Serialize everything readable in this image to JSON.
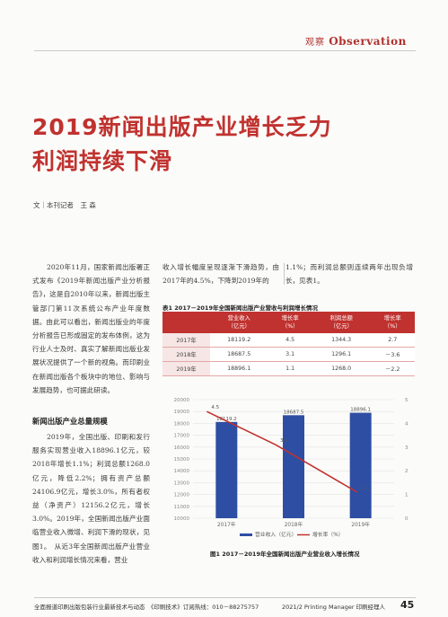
{
  "header": {
    "section_cn": "观察",
    "section_en": "Observation"
  },
  "title": {
    "line1": "2019新闻出版产业增长乏力",
    "line2": "利润持续下滑"
  },
  "byline": "文｜本刊记者　王 森",
  "column1": {
    "paragraph1": "2020年11月，国家新闻出版署正式发布《2019年新闻出版产业分析报告》，这是自2010年以来，新闻出版主管部门第11次系统公布产业年度数据。由此可以看出，新闻出版业的年度分析报告已形成固定的发布体例，这为行业人士及时、真实了解新闻出版业发展状况提供了一个新的视角。而印刷业在新闻出版各个板块中的地位、影响与发展趋势，也可据此研读。",
    "heading": "新闻出版产业总量规模",
    "paragraph2": "2019年，全国出版、印刷和发行服务实现营业收入18896.1亿元，较2018年增长1.1%；利润总额1268.0亿元，降低2.2%；拥有资产总额24106.9亿元，增长3.0%，所有者权益（净资产）12156.2亿元，增长3.0%。2019年，全国新闻出版产业面临营业收入微增、利润下滑的现状，见图1。　从近3年全国新闻出版产业营业收入和利润增长情况来看，营业"
  },
  "column2": {
    "paragraph": "收入增长幅度呈现逐渐下滑趋势，由2017年的4.5%，下降到2019年的"
  },
  "column3": {
    "paragraph": "1.1%；而利润总额则连续两年出现负增长，见表1。"
  },
  "table": {
    "caption": "表1 2017－2019年全国新闻出版产业营收与利润增长情况",
    "headers": [
      "",
      "营业收入\n（亿元）",
      "增长率\n（%）",
      "利润总额\n（亿元）",
      "增长率\n（%）"
    ],
    "rows": [
      [
        "2017年",
        "18119.2",
        "4.5",
        "1344.3",
        "2.7"
      ],
      [
        "2018年",
        "18687.5",
        "3.1",
        "1296.1",
        "－3.6"
      ],
      [
        "2019年",
        "18896.1",
        "1.1",
        "1268.0",
        "－2.2"
      ]
    ]
  },
  "chart_data": {
    "type": "bar",
    "categories": [
      "2017年",
      "2018年",
      "2019年"
    ],
    "series": [
      {
        "name": "营业收入（亿元）",
        "type": "bar",
        "axis": "left",
        "values": [
          18119.2,
          18687.5,
          18896.1
        ],
        "labels": [
          "18119.2",
          "18687.5",
          "18896.1"
        ]
      },
      {
        "name": "增长率（%）",
        "type": "line",
        "axis": "right",
        "values": [
          4.5,
          3.1,
          1.1
        ],
        "labels": [
          "4.5",
          "3.1",
          "1.1"
        ]
      }
    ],
    "ylim_left": [
      10000,
      20000
    ],
    "yticks_left": [
      "20000",
      "19000",
      "18000",
      "17000",
      "16000",
      "15000",
      "14000",
      "13000",
      "12000",
      "11000",
      "10000"
    ],
    "ylim_right": [
      0,
      5
    ],
    "yticks_right": [
      "5",
      "4",
      "3",
      "2",
      "1",
      "0"
    ],
    "colors": {
      "bar": "#2e4ea3",
      "line": "#c0322f"
    },
    "legend_position": "bottom"
  },
  "figure_caption": "图1 2017－2019年全国新闻出版产业营业收入增长情况",
  "footer": {
    "left": "全面报道印刷出版包装行业最新技术与动态　《印刷技术》订阅热线：010－88275757",
    "right": "2021/2 Printing Manager 印刷经理人",
    "page": "45"
  }
}
